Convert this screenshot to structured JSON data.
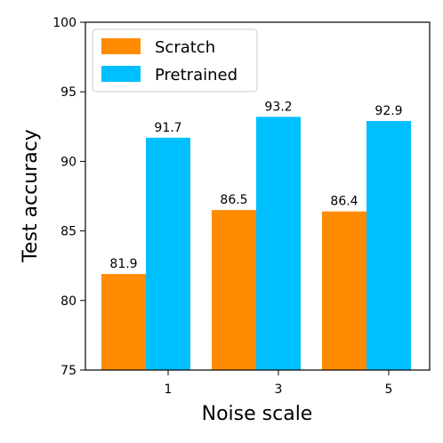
{
  "chart_data": {
    "type": "bar",
    "title": "",
    "xlabel": "Noise scale",
    "ylabel": "Test accuracy",
    "categories": [
      "1",
      "3",
      "5"
    ],
    "ylim": [
      75,
      100
    ],
    "yticks": [
      75,
      80,
      85,
      90,
      95,
      100
    ],
    "grid": false,
    "legend_position": "top-left",
    "series": [
      {
        "name": "Scratch",
        "color": "#FF8C00",
        "values": [
          81.9,
          86.5,
          86.4
        ]
      },
      {
        "name": "Pretrained",
        "color": "#00BFFF",
        "values": [
          91.7,
          93.2,
          92.9
        ]
      }
    ]
  }
}
